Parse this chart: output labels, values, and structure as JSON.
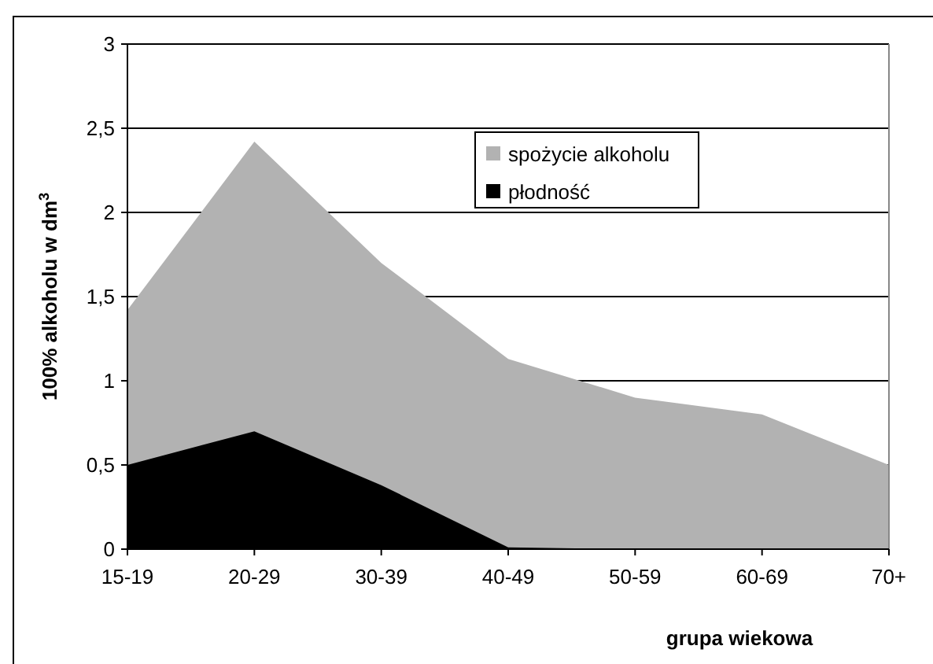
{
  "chart_data": {
    "type": "area",
    "xlabel": "grupa wiekowa",
    "ylabel": "100%  alkoholu w dm$^{3}$",
    "categories": [
      "15-19",
      "20-29",
      "30-39",
      "40-49",
      "50-59",
      "60-69",
      "70+"
    ],
    "series": [
      {
        "name": "spożycie alkoholu",
        "color": "#b2b2b2",
        "values": [
          1.42,
          2.42,
          1.7,
          1.13,
          0.9,
          0.8,
          0.5
        ]
      },
      {
        "name": "płodność",
        "color": "#000000",
        "values": [
          0.5,
          0.7,
          0.38,
          0.01,
          0,
          0,
          0
        ]
      }
    ],
    "ylim": [
      0,
      3
    ],
    "yticks": [
      0,
      {
        "value": 0.5,
        "label": "0,5"
      },
      1,
      {
        "value": 1.5,
        "label": "1,5"
      },
      2,
      {
        "value": 2.5,
        "label": "2,5"
      },
      3
    ],
    "grid": "y",
    "legend": "top right"
  }
}
